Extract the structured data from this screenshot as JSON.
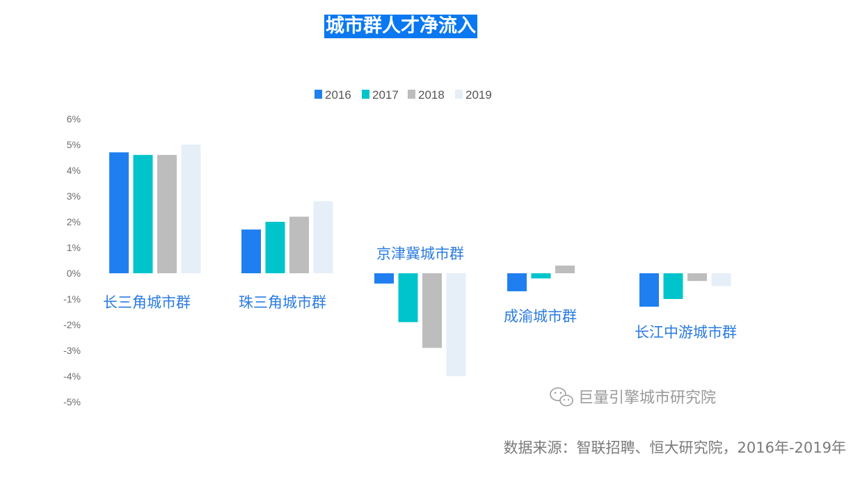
{
  "title": "城市群人才净流入",
  "source_note": "数据来源：智联招聘、恒大研究院，2016年-2019年",
  "watermark": "巨量引擎城市研究院",
  "watermark_icon": "wechat-icon",
  "colors": {
    "title_bg": "#0a78f0",
    "2016": "#1f7ff0",
    "2017": "#00c4cc",
    "2018": "#bdbdbd",
    "2019": "#e6eff8",
    "label": "#2a7be0"
  },
  "chart_data": {
    "type": "bar",
    "title": "城市群人才净流入",
    "categories": [
      "长三角城市群",
      "珠三角城市群",
      "京津冀城市群",
      "成渝城市群",
      "长江中游城市群"
    ],
    "series": [
      {
        "name": "2016",
        "values": [
          4.7,
          1.7,
          -0.4,
          -0.7,
          -1.3
        ]
      },
      {
        "name": "2017",
        "values": [
          4.6,
          2.0,
          -1.9,
          -0.2,
          -1.0
        ]
      },
      {
        "name": "2018",
        "values": [
          4.6,
          2.2,
          -2.9,
          0.3,
          -0.3
        ]
      },
      {
        "name": "2019",
        "values": [
          5.0,
          2.8,
          -4.0,
          0.0,
          -0.5
        ]
      }
    ],
    "y_ticks": [
      "6%",
      "5%",
      "4%",
      "3%",
      "2%",
      "1%",
      "0%",
      "-1%",
      "-2%",
      "-3%",
      "-4%",
      "-5%"
    ],
    "ylim": [
      -5,
      6
    ],
    "legend": [
      "2016",
      "2017",
      "2018",
      "2019"
    ],
    "legend_position": "top",
    "grid": false
  }
}
